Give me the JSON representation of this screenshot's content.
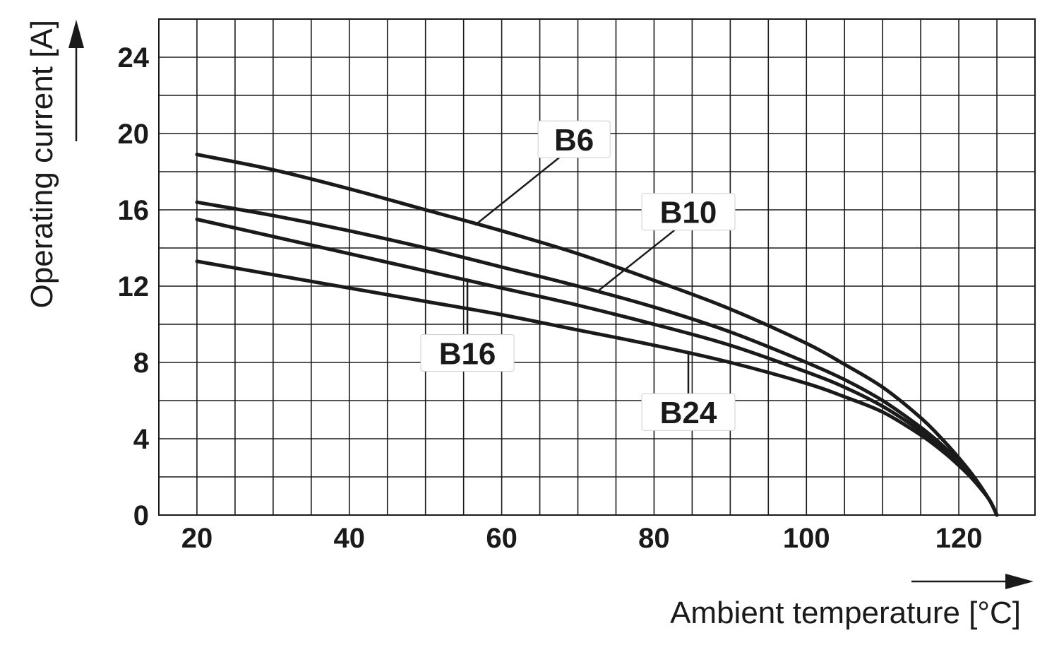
{
  "chart_data": {
    "type": "line",
    "title": "",
    "xlabel": "Ambient temperature [°C]",
    "ylabel": "Operating current [A]",
    "xlim": [
      15,
      130
    ],
    "ylim": [
      0,
      26
    ],
    "x_ticks": [
      20,
      40,
      60,
      80,
      100,
      120
    ],
    "y_ticks": [
      0,
      4,
      8,
      12,
      16,
      20,
      24
    ],
    "grid": true,
    "series": [
      {
        "name": "B6",
        "x": [
          20,
          30,
          40,
          50,
          60,
          70,
          80,
          90,
          100,
          105,
          110,
          115,
          118,
          120,
          122,
          124,
          125
        ],
        "y": [
          18.9,
          18.1,
          17.1,
          16.0,
          14.9,
          13.7,
          12.3,
          10.8,
          9.0,
          7.9,
          6.7,
          5.1,
          3.9,
          3.0,
          2.0,
          0.8,
          0.0
        ]
      },
      {
        "name": "B10",
        "x": [
          20,
          30,
          40,
          50,
          60,
          70,
          80,
          90,
          100,
          105,
          110,
          115,
          118,
          120,
          122,
          124,
          125
        ],
        "y": [
          16.4,
          15.7,
          14.9,
          14.0,
          13.0,
          12.0,
          10.9,
          9.6,
          8.0,
          7.1,
          6.0,
          4.6,
          3.6,
          2.8,
          1.9,
          0.8,
          0.0
        ]
      },
      {
        "name": "B16",
        "x": [
          20,
          30,
          40,
          50,
          60,
          70,
          80,
          90,
          100,
          105,
          110,
          115,
          118,
          120,
          122,
          124,
          125
        ],
        "y": [
          15.5,
          14.6,
          13.7,
          12.8,
          11.9,
          11.0,
          10.0,
          8.9,
          7.5,
          6.7,
          5.7,
          4.4,
          3.4,
          2.7,
          1.8,
          0.8,
          0.0
        ]
      },
      {
        "name": "B24",
        "x": [
          20,
          30,
          40,
          50,
          60,
          70,
          80,
          90,
          100,
          105,
          110,
          115,
          118,
          120,
          122,
          124,
          125
        ],
        "y": [
          13.3,
          12.6,
          11.9,
          11.2,
          10.5,
          9.7,
          8.9,
          8.0,
          6.9,
          6.2,
          5.4,
          4.2,
          3.3,
          2.6,
          1.8,
          0.8,
          0.0
        ]
      }
    ],
    "annotations": [
      {
        "series": "B6",
        "label": "B6",
        "label_at": [
          69.5,
          19.7
        ],
        "points_to": [
          56.5,
          15.2
        ]
      },
      {
        "series": "B10",
        "label": "B10",
        "label_at": [
          84.5,
          15.9
        ],
        "points_to": [
          72.5,
          11.7
        ]
      },
      {
        "series": "B16",
        "label": "B16",
        "label_at": [
          55.5,
          8.5
        ],
        "points_to": [
          55.5,
          12.4
        ]
      },
      {
        "series": "B24",
        "label": "B24",
        "label_at": [
          84.5,
          5.4
        ],
        "points_to": [
          84.5,
          8.5
        ]
      }
    ]
  }
}
